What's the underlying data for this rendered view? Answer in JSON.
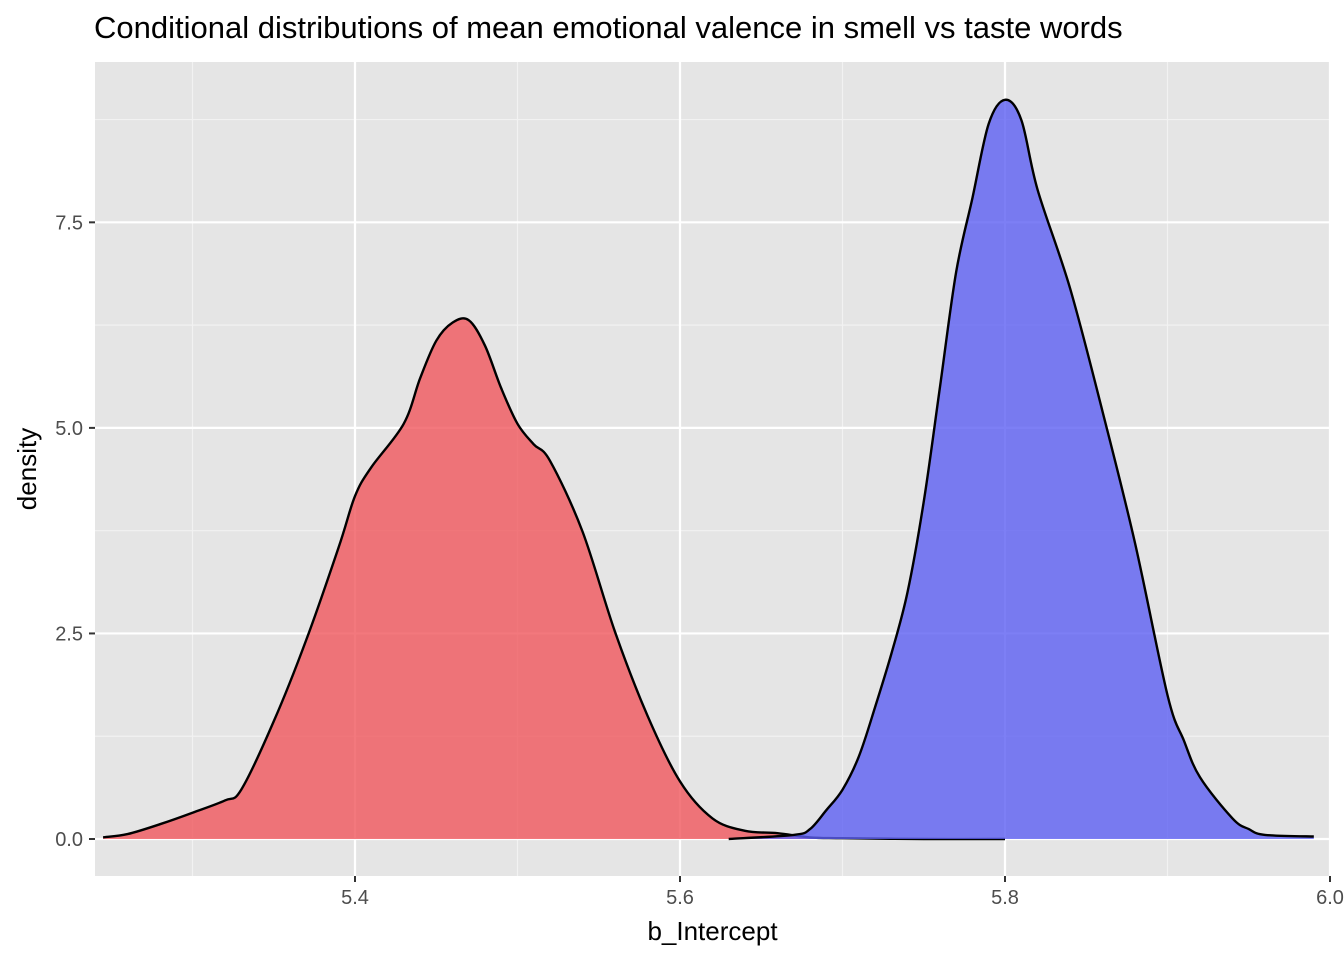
{
  "chart_data": {
    "type": "area",
    "title": "Conditional distributions of mean emotional valence in smell vs taste words",
    "xlabel": "b_Intercept",
    "ylabel": "density",
    "xlim": [
      5.24,
      6.0
    ],
    "ylim": [
      -0.45,
      9.45
    ],
    "x_ticks": [
      {
        "value": 5.4,
        "label": "5.4"
      },
      {
        "value": 5.6,
        "label": "5.6"
      },
      {
        "value": 5.8,
        "label": "5.8"
      },
      {
        "value": 6.0,
        "label": "6.0"
      }
    ],
    "y_ticks": [
      {
        "value": 0.0,
        "label": "0.0"
      },
      {
        "value": 2.5,
        "label": "2.5"
      },
      {
        "value": 5.0,
        "label": "5.0"
      },
      {
        "value": 7.5,
        "label": "7.5"
      }
    ],
    "grid": true,
    "legend": "none",
    "series": [
      {
        "color": "#f8766d",
        "fill": "#f0565c",
        "x": [
          5.245,
          5.26,
          5.28,
          5.3,
          5.32,
          5.33,
          5.35,
          5.37,
          5.39,
          5.4,
          5.41,
          5.43,
          5.44,
          5.45,
          5.46,
          5.47,
          5.48,
          5.49,
          5.5,
          5.51,
          5.52,
          5.54,
          5.56,
          5.58,
          5.6,
          5.62,
          5.64,
          5.66,
          5.68,
          5.7,
          5.75,
          5.8
        ],
        "y": [
          0.02,
          0.06,
          0.18,
          0.32,
          0.47,
          0.6,
          1.43,
          2.42,
          3.55,
          4.17,
          4.52,
          5.05,
          5.6,
          6.06,
          6.28,
          6.31,
          6.0,
          5.48,
          5.05,
          4.8,
          4.6,
          3.74,
          2.52,
          1.5,
          0.7,
          0.25,
          0.1,
          0.07,
          0.02,
          0.01,
          0.0,
          0.0
        ]
      },
      {
        "color": "#0000ff",
        "fill": "#5c5ff2",
        "x": [
          5.63,
          5.67,
          5.68,
          5.69,
          5.7,
          5.71,
          5.72,
          5.73,
          5.74,
          5.75,
          5.76,
          5.77,
          5.78,
          5.79,
          5.8,
          5.81,
          5.82,
          5.84,
          5.86,
          5.88,
          5.9,
          5.91,
          5.92,
          5.94,
          5.95,
          5.96,
          5.99
        ],
        "y": [
          0.0,
          0.05,
          0.12,
          0.35,
          0.6,
          1.0,
          1.6,
          2.25,
          3.0,
          4.1,
          5.5,
          6.9,
          7.8,
          8.7,
          8.99,
          8.75,
          7.9,
          6.7,
          5.2,
          3.6,
          1.75,
          1.2,
          0.75,
          0.25,
          0.12,
          0.05,
          0.03
        ]
      }
    ]
  }
}
